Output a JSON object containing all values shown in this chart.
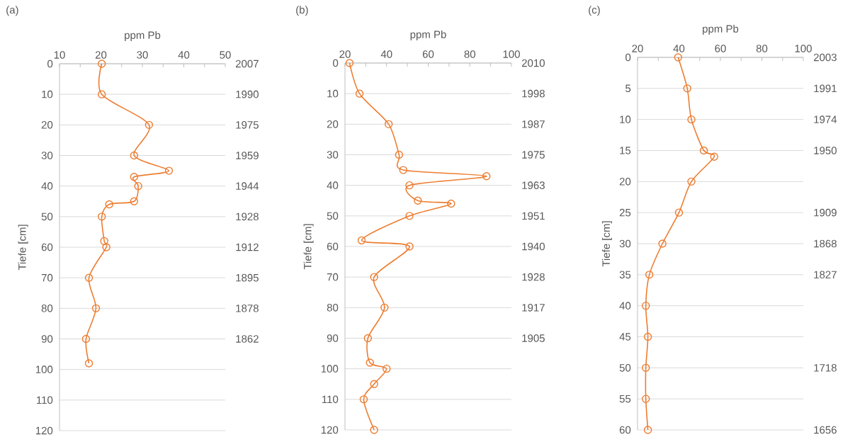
{
  "chart_data": [
    {
      "type": "line",
      "xlabel": "ppm Pb",
      "ylabel": "Tiefe [cm]",
      "annotations": [
        "(a)",
        "2007",
        "1990",
        "1975",
        "1959",
        "1944",
        "1928",
        "1912",
        "1895",
        "1878",
        "1862"
      ],
      "series": [
        {
          "color": "#ed7d31",
          "x": [
            20.2,
            20.2,
            31.6,
            28,
            36.4,
            28,
            29,
            28,
            22,
            20.2,
            20.8,
            21.3,
            17.1,
            18.8,
            16.4,
            17.1
          ],
          "values": [
            0,
            10,
            20,
            30,
            35,
            37,
            40,
            45,
            46,
            50,
            58,
            60,
            70,
            80,
            90,
            98
          ]
        }
      ],
      "xlim": [
        10,
        50
      ],
      "xticks": [
        10,
        {
          "value": 15,
          "label": null
        },
        20,
        {
          "value": 25,
          "label": null
        },
        30,
        {
          "value": 35,
          "label": null
        },
        40,
        {
          "value": 45,
          "label": null
        },
        50
      ],
      "ylim": [
        120,
        0
      ],
      "yticks": [
        0,
        10,
        20,
        30,
        40,
        50,
        60,
        70,
        80,
        90,
        100,
        110,
        120
      ],
      "grid": "y",
      "marker": "circle",
      "line_style": "solid"
    },
    {
      "type": "line",
      "xlabel": "ppm Pb",
      "ylabel": "Tiefe [cm]",
      "annotations": [
        "(b)",
        "2010",
        "1998",
        "1987",
        "1975",
        "1963",
        "1951",
        "1940",
        "1928",
        "1917",
        "1905"
      ],
      "series": [
        {
          "color": "#ed7d31",
          "x": [
            22.2,
            27,
            41,
            46,
            48,
            88,
            51,
            55,
            71,
            51,
            28,
            51,
            34,
            39,
            31,
            32,
            40,
            34,
            29,
            34
          ],
          "values": [
            0,
            10,
            20,
            30,
            35,
            37,
            40,
            45,
            46,
            50,
            58,
            60,
            70,
            80,
            90,
            98,
            100,
            105,
            110,
            120
          ]
        }
      ],
      "xlim": [
        20,
        100
      ],
      "xticks": [
        20,
        {
          "value": 30,
          "label": null
        },
        40,
        {
          "value": 50,
          "label": null
        },
        60,
        {
          "value": 70,
          "label": null
        },
        80,
        {
          "value": 90,
          "label": null
        },
        100
      ],
      "ylim": [
        120,
        0
      ],
      "yticks": [
        0,
        10,
        20,
        30,
        40,
        50,
        60,
        70,
        80,
        90,
        100,
        110,
        120
      ],
      "grid": "y",
      "marker": "circle",
      "line_style": "solid"
    },
    {
      "type": "line",
      "xlabel": "ppm Pb",
      "ylabel": "Tiefe [cm]",
      "annotations": [
        "(c)",
        "2003",
        "1991",
        "1974",
        "1950",
        "1909",
        "1868",
        "1827",
        "1718",
        "1656"
      ],
      "series": [
        {
          "color": "#ed7d31",
          "x": [
            39.6,
            44,
            46,
            52,
            57,
            46,
            40,
            32,
            25.7,
            24,
            25,
            24,
            24,
            25
          ],
          "values": [
            0,
            5,
            10,
            15,
            16,
            20,
            25,
            30,
            35,
            40,
            45,
            50,
            55,
            60
          ]
        }
      ],
      "xlim": [
        20,
        100
      ],
      "xticks": [
        20,
        {
          "value": 30,
          "label": null
        },
        40,
        {
          "value": 50,
          "label": null
        },
        60,
        {
          "value": 70,
          "label": null
        },
        80,
        {
          "value": 90,
          "label": null
        },
        100
      ],
      "ylim": [
        60,
        0
      ],
      "yticks": [
        0,
        5,
        10,
        15,
        20,
        25,
        30,
        35,
        40,
        45,
        50,
        55,
        60
      ],
      "grid": "y",
      "marker": "circle",
      "line_style": "solid"
    }
  ]
}
